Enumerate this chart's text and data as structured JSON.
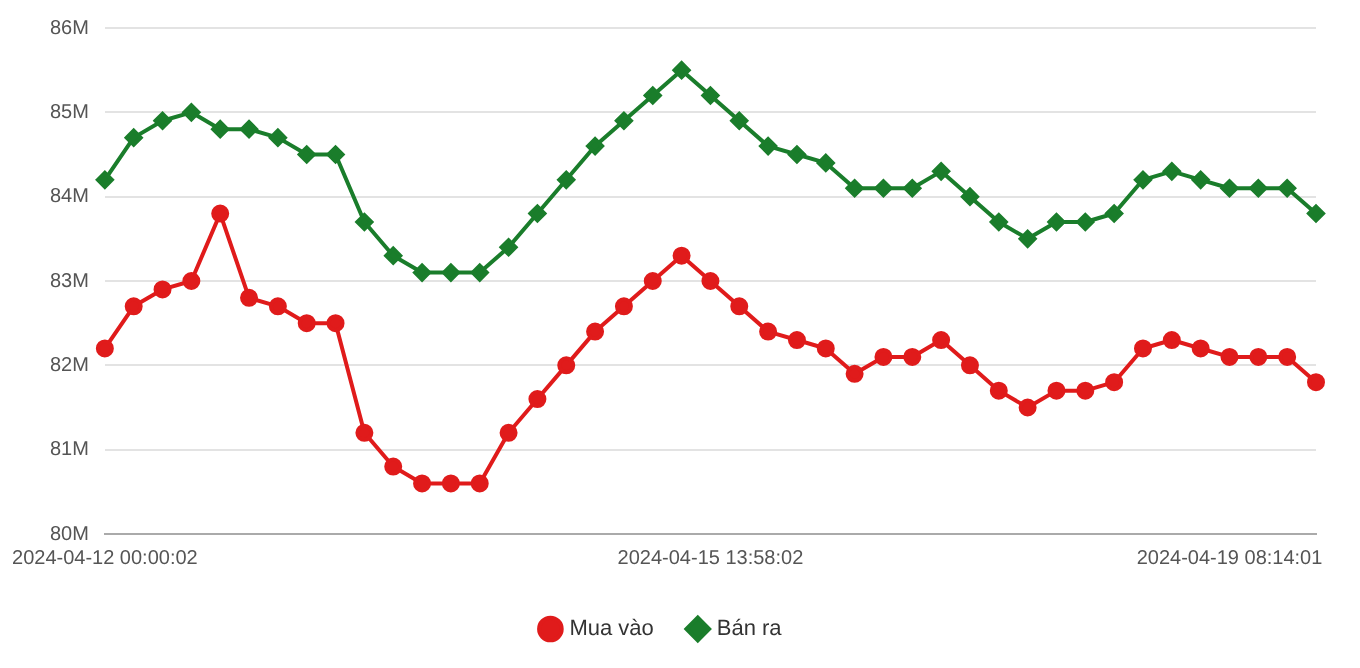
{
  "chart_data": {
    "type": "line",
    "categories": [
      "2024-04-12 00:00:02",
      null,
      null,
      null,
      null,
      null,
      null,
      null,
      null,
      null,
      null,
      null,
      null,
      null,
      null,
      null,
      null,
      null,
      null,
      null,
      null,
      "2024-04-15 13:58:02",
      null,
      null,
      null,
      null,
      null,
      null,
      null,
      null,
      null,
      null,
      null,
      null,
      null,
      null,
      null,
      null,
      null,
      "2024-04-19 08:14:01",
      null,
      null,
      null
    ],
    "series": [
      {
        "name": "Mua vào",
        "color": "#e01b1b",
        "marker": "circle",
        "values": [
          82.2,
          82.7,
          82.9,
          83.0,
          83.8,
          82.8,
          82.7,
          82.5,
          82.5,
          81.2,
          80.8,
          80.6,
          80.6,
          80.6,
          81.2,
          81.6,
          82.0,
          82.4,
          82.7,
          83.0,
          83.3,
          83.0,
          82.7,
          82.4,
          82.3,
          82.2,
          81.9,
          82.1,
          82.1,
          82.3,
          82.0,
          81.7,
          81.5,
          81.7,
          81.7,
          81.8,
          82.2,
          82.3,
          82.2,
          82.1,
          82.1,
          82.1,
          81.8
        ]
      },
      {
        "name": "Bán ra",
        "color": "#1a7d2b",
        "marker": "diamond",
        "values": [
          84.2,
          84.7,
          84.9,
          85.0,
          84.8,
          84.8,
          84.7,
          84.5,
          84.5,
          83.7,
          83.3,
          83.1,
          83.1,
          83.1,
          83.4,
          83.8,
          84.2,
          84.6,
          84.9,
          85.2,
          85.5,
          85.2,
          84.9,
          84.6,
          84.5,
          84.4,
          84.1,
          84.1,
          84.1,
          84.3,
          84.0,
          83.7,
          83.5,
          83.7,
          83.7,
          83.8,
          84.2,
          84.3,
          84.2,
          84.1,
          84.1,
          84.1,
          83.8
        ]
      }
    ],
    "ylim": [
      80,
      86
    ],
    "yticks": [
      {
        "value": 80,
        "label": "80M"
      },
      {
        "value": 81,
        "label": "81M"
      },
      {
        "value": 82,
        "label": "82M"
      },
      {
        "value": 83,
        "label": "83M"
      },
      {
        "value": 84,
        "label": "84M"
      },
      {
        "value": 85,
        "label": "85M"
      },
      {
        "value": 86,
        "label": "86M"
      }
    ],
    "grid": "y",
    "legend": "bottom",
    "line_style": "solid"
  }
}
